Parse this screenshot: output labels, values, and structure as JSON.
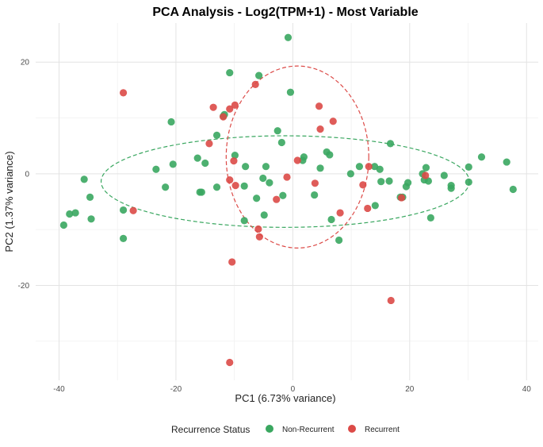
{
  "chart_data": {
    "type": "scatter",
    "title": "PCA Analysis - Log2(TPM+1) - Most Variable",
    "xlabel": "PC1 (6.73% variance)",
    "ylabel": "PC2 (1.37% variance)",
    "xlim": [
      -44,
      42
    ],
    "ylim": [
      -37,
      27
    ],
    "xticks": [
      -40,
      -20,
      0,
      20,
      40
    ],
    "yticks": [
      -20,
      0,
      20
    ],
    "grid": true,
    "legend": {
      "title": "Recurrence Status",
      "position": "bottom"
    },
    "series": [
      {
        "name": "Non-Recurrent",
        "color": "#3aa760",
        "points": [
          [
            -39.2,
            -9.2
          ],
          [
            -38.2,
            -7.2
          ],
          [
            -37.2,
            -7.0
          ],
          [
            -35.7,
            -1.0
          ],
          [
            -34.7,
            -4.2
          ],
          [
            -34.5,
            -8.1
          ],
          [
            -29.0,
            -6.5
          ],
          [
            -29.0,
            -11.6
          ],
          [
            -23.4,
            0.8
          ],
          [
            -21.8,
            -2.4
          ],
          [
            -20.8,
            9.3
          ],
          [
            -20.5,
            1.7
          ],
          [
            -16.3,
            2.8
          ],
          [
            -15.9,
            -3.3
          ],
          [
            -15.6,
            -3.3
          ],
          [
            -15.0,
            1.9
          ],
          [
            -13.0,
            6.9
          ],
          [
            -13.0,
            -2.4
          ],
          [
            -11.9,
            10.3
          ],
          [
            -11.7,
            10.6
          ],
          [
            -10.8,
            18.1
          ],
          [
            -9.9,
            3.3
          ],
          [
            -8.1,
            1.3
          ],
          [
            -8.3,
            -2.2
          ],
          [
            -8.3,
            -8.4
          ],
          [
            -6.2,
            -4.4
          ],
          [
            -5.8,
            17.6
          ],
          [
            -5.1,
            -0.8
          ],
          [
            -4.9,
            -7.4
          ],
          [
            -4.6,
            1.3
          ],
          [
            -4.0,
            -1.6
          ],
          [
            -2.6,
            7.7
          ],
          [
            -1.9,
            5.6
          ],
          [
            -1.7,
            -3.9
          ],
          [
            -0.8,
            24.4
          ],
          [
            -0.4,
            14.6
          ],
          [
            1.7,
            2.4
          ],
          [
            1.9,
            3.0
          ],
          [
            3.7,
            -3.8
          ],
          [
            4.7,
            1.0
          ],
          [
            5.8,
            3.9
          ],
          [
            6.3,
            3.4
          ],
          [
            6.6,
            -8.2
          ],
          [
            7.9,
            -11.9
          ],
          [
            9.9,
            0.0
          ],
          [
            11.4,
            1.3
          ],
          [
            14.0,
            1.3
          ],
          [
            14.1,
            -5.7
          ],
          [
            14.9,
            0.8
          ],
          [
            15.1,
            -1.4
          ],
          [
            16.5,
            -1.3
          ],
          [
            16.7,
            5.4
          ],
          [
            18.4,
            -4.2
          ],
          [
            18.8,
            -4.2
          ],
          [
            19.4,
            -2.3
          ],
          [
            19.7,
            -1.6
          ],
          [
            22.2,
            0.0
          ],
          [
            22.5,
            -1.1
          ],
          [
            22.8,
            1.1
          ],
          [
            23.2,
            -1.3
          ],
          [
            23.6,
            -7.9
          ],
          [
            25.9,
            -0.3
          ],
          [
            27.1,
            -2.1
          ],
          [
            27.1,
            -2.6
          ],
          [
            30.1,
            1.2
          ],
          [
            30.1,
            -1.5
          ],
          [
            32.3,
            3.0
          ],
          [
            36.6,
            2.1
          ],
          [
            37.7,
            -2.8
          ]
        ]
      },
      {
        "name": "Recurrent",
        "color": "#dc4a47",
        "points": [
          [
            -29.0,
            14.5
          ],
          [
            -27.3,
            -6.6
          ],
          [
            -14.3,
            5.4
          ],
          [
            -13.6,
            11.9
          ],
          [
            -11.9,
            10.2
          ],
          [
            -10.8,
            11.6
          ],
          [
            -10.8,
            -1.1
          ],
          [
            -10.8,
            -33.8
          ],
          [
            -10.4,
            -15.8
          ],
          [
            -10.1,
            2.3
          ],
          [
            -9.8,
            -2.1
          ],
          [
            -9.9,
            12.3
          ],
          [
            -6.4,
            16.0
          ],
          [
            -5.9,
            -9.9
          ],
          [
            -5.7,
            -11.3
          ],
          [
            -2.8,
            -4.6
          ],
          [
            -1.0,
            -0.6
          ],
          [
            0.8,
            2.4
          ],
          [
            3.8,
            -1.7
          ],
          [
            4.5,
            12.1
          ],
          [
            4.7,
            8.0
          ],
          [
            6.9,
            9.4
          ],
          [
            8.1,
            -7.0
          ],
          [
            12.0,
            -2.0
          ],
          [
            12.8,
            -6.2
          ],
          [
            13.0,
            1.3
          ],
          [
            16.8,
            -22.7
          ],
          [
            18.6,
            -4.3
          ],
          [
            22.7,
            -0.3
          ]
        ]
      }
    ],
    "ellipses": [
      {
        "series": "Non-Recurrent",
        "center": [
          -1.3,
          -1.4
        ],
        "radii": [
          31.5,
          8.2
        ],
        "color": "#3aa760",
        "style": "dashed"
      },
      {
        "series": "Recurrent",
        "center": [
          0.8,
          3.0
        ],
        "radii": [
          12.2,
          16.3
        ],
        "color": "#dc4a47",
        "style": "dashed"
      }
    ]
  }
}
